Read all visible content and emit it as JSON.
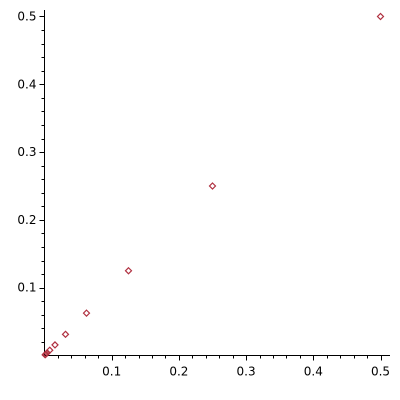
{
  "chart_data": {
    "type": "scatter",
    "title": "",
    "xlabel": "",
    "ylabel": "",
    "xlim": [
      0,
      0.5
    ],
    "ylim": [
      0,
      0.5
    ],
    "grid": false,
    "marker": "diamond",
    "marker_color": "#b03040",
    "x_ticks": [
      {
        "value": 0.1,
        "label": "0.1"
      },
      {
        "value": 0.2,
        "label": "0.2"
      },
      {
        "value": 0.3,
        "label": "0.3"
      },
      {
        "value": 0.4,
        "label": "0.4"
      },
      {
        "value": 0.5,
        "label": "0.5"
      }
    ],
    "y_ticks": [
      {
        "value": 0.1,
        "label": "0.1"
      },
      {
        "value": 0.2,
        "label": "0.2"
      },
      {
        "value": 0.3,
        "label": "0.3"
      },
      {
        "value": 0.4,
        "label": "0.4"
      },
      {
        "value": 0.5,
        "label": "0.5"
      }
    ],
    "series": [
      {
        "points": [
          {
            "x": 0.5,
            "y": 0.5
          },
          {
            "x": 0.25,
            "y": 0.25
          },
          {
            "x": 0.125,
            "y": 0.125
          },
          {
            "x": 0.0625,
            "y": 0.0625
          },
          {
            "x": 0.03125,
            "y": 0.03125
          },
          {
            "x": 0.015625,
            "y": 0.015625
          },
          {
            "x": 0.0078125,
            "y": 0.0078125
          },
          {
            "x": 0.00390625,
            "y": 0.00390625
          },
          {
            "x": 0.001953125,
            "y": 0.001953125
          },
          {
            "x": 0.0009765625,
            "y": 0.0009765625
          }
        ]
      }
    ]
  }
}
